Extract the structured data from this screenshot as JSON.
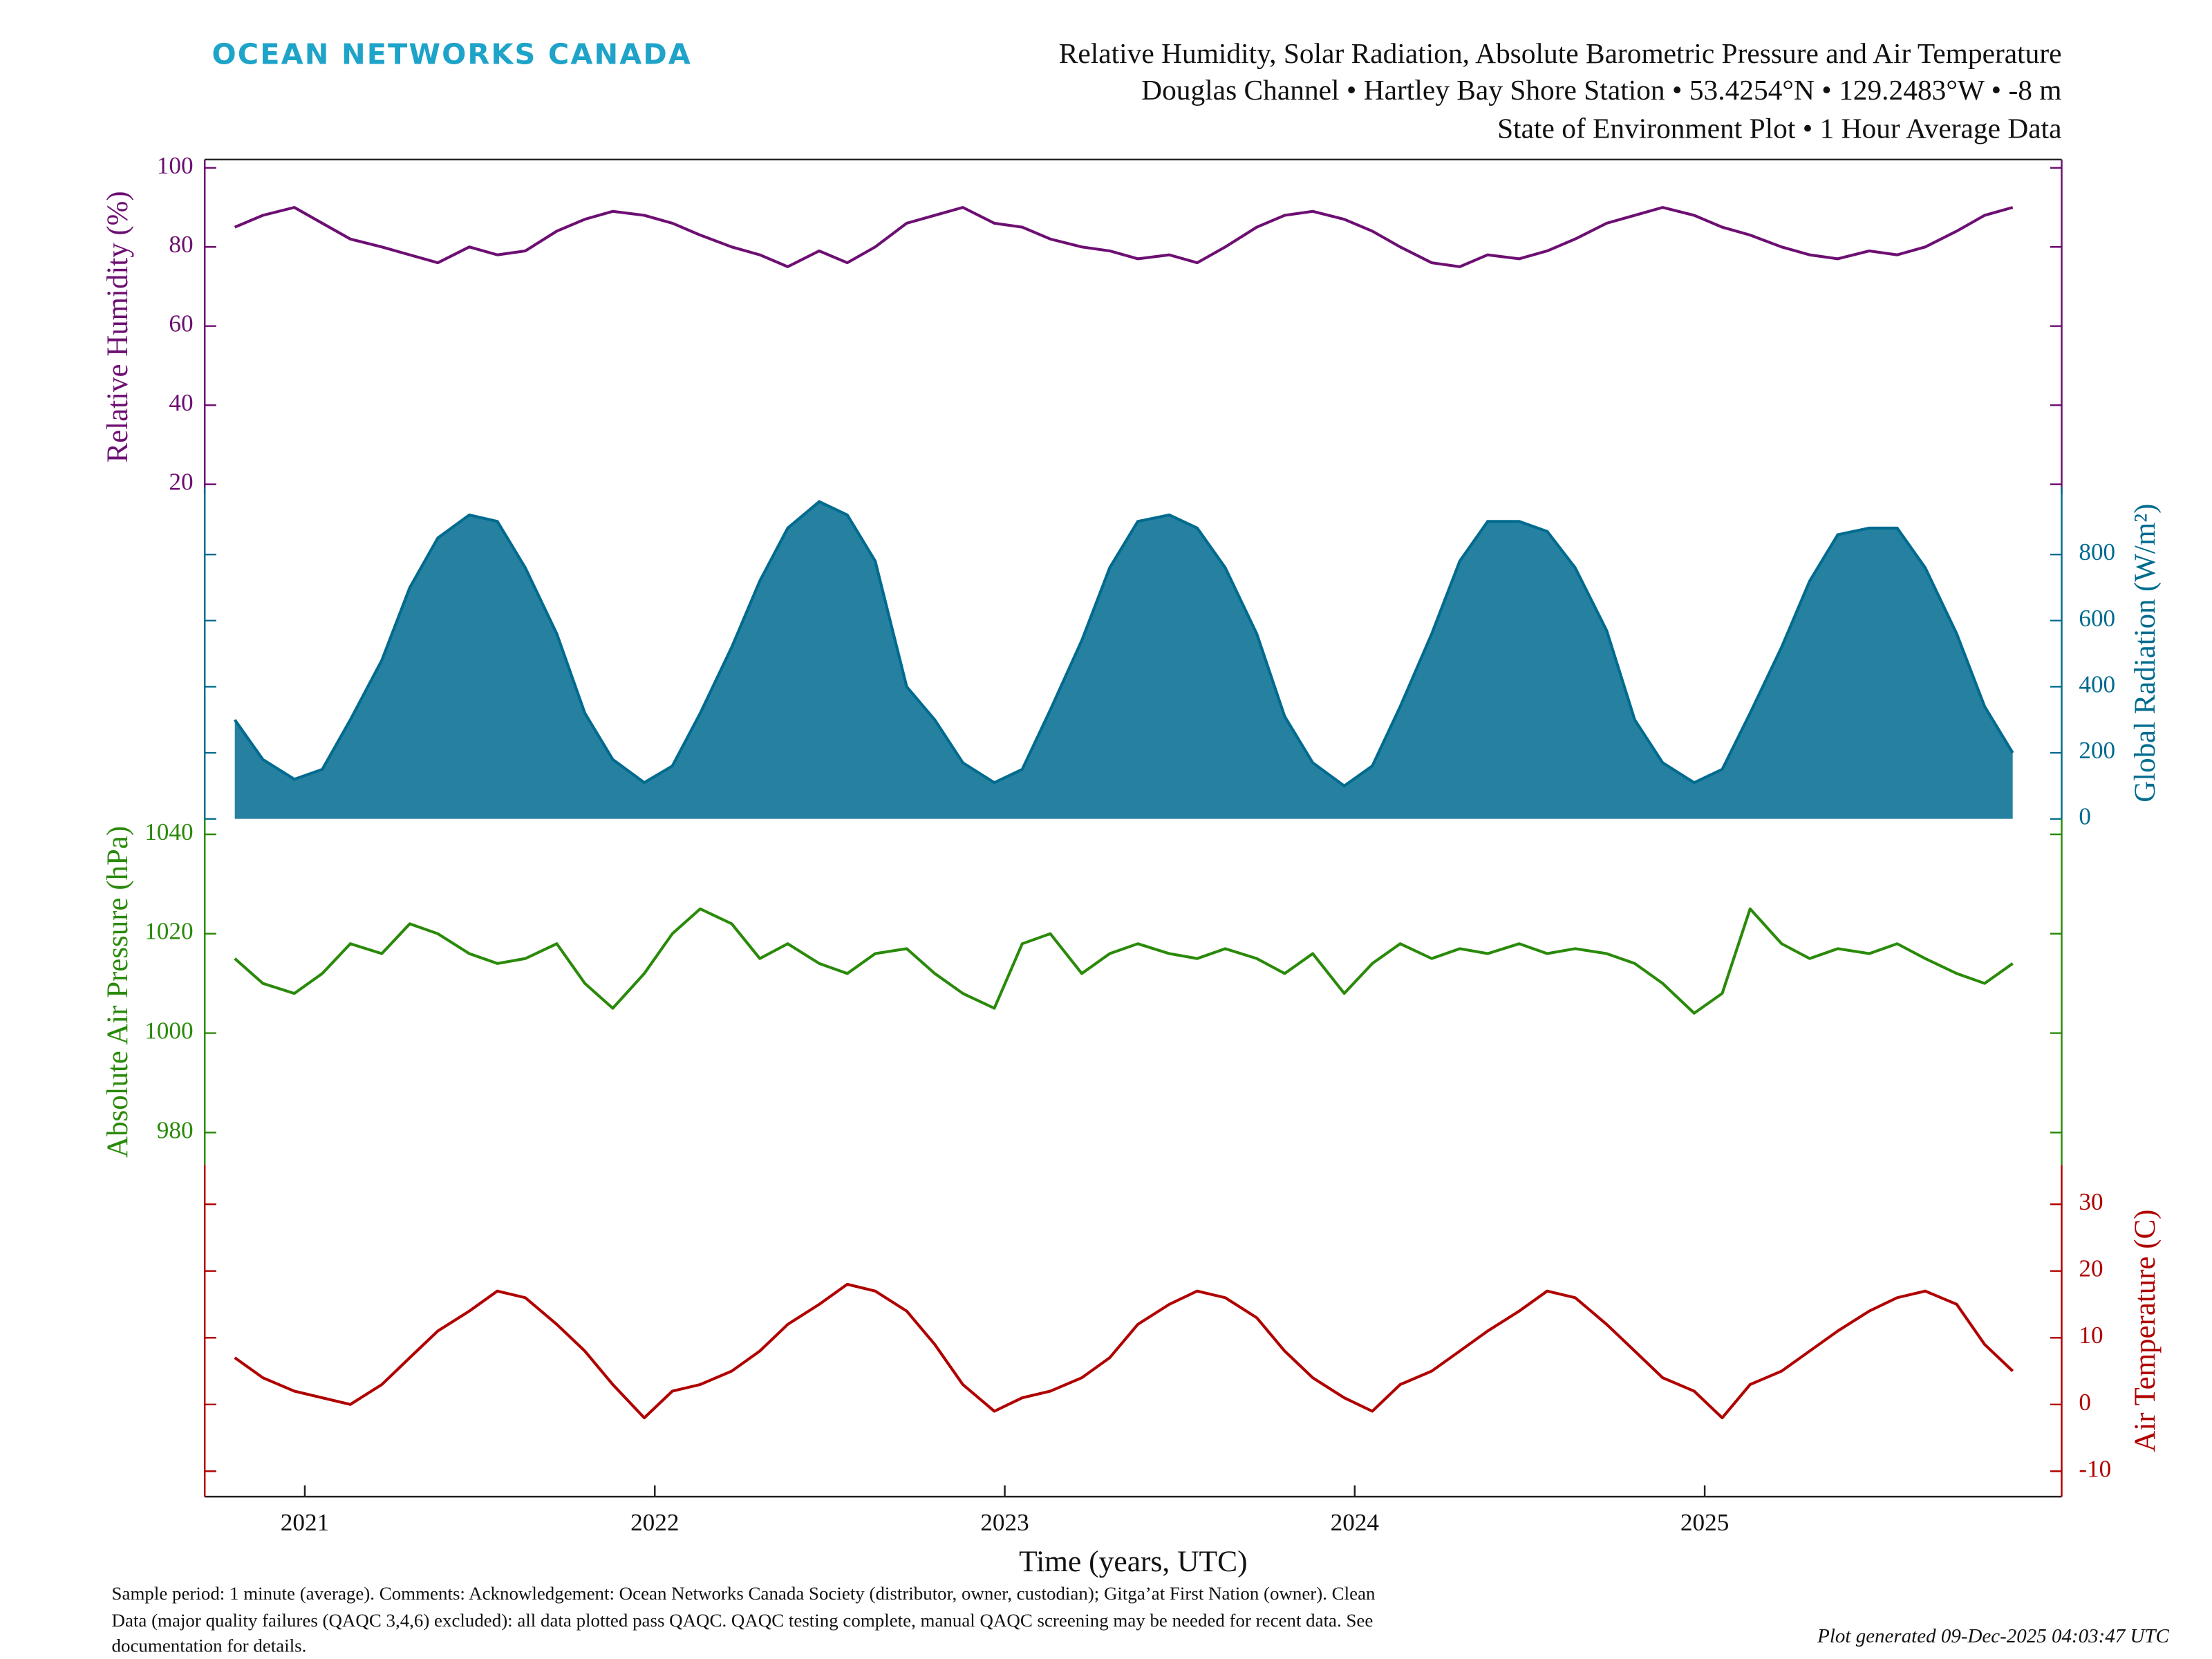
{
  "header": {
    "logo": "OCEAN NETWORKS CANADA",
    "title_lines": [
      "Relative Humidity, Solar Radiation, Absolute Barometric Pressure and Air Temperature",
      "Douglas Channel • Hartley Bay Shore Station • 53.4254°N • 129.2483°W • -8 m",
      "State of Environment Plot • 1 Hour Average Data"
    ]
  },
  "chart_data": [
    {
      "type": "line",
      "ylabel": "Relative Humidity (%)",
      "color": "#6d0f72",
      "axis_side": "left",
      "xlim": [
        2020.714,
        2026.02
      ],
      "ylim": [
        17.5,
        102.1
      ],
      "yticks": [
        20,
        40,
        60,
        80,
        100
      ],
      "x": [
        2020.8,
        2020.88,
        2020.97,
        2021.05,
        2021.13,
        2021.22,
        2021.3,
        2021.38,
        2021.47,
        2021.55,
        2021.63,
        2021.72,
        2021.8,
        2021.88,
        2021.97,
        2022.05,
        2022.13,
        2022.22,
        2022.3,
        2022.38,
        2022.47,
        2022.55,
        2022.63,
        2022.72,
        2022.8,
        2022.88,
        2022.97,
        2023.05,
        2023.13,
        2023.22,
        2023.3,
        2023.38,
        2023.47,
        2023.55,
        2023.63,
        2023.72,
        2023.8,
        2023.88,
        2023.97,
        2024.05,
        2024.13,
        2024.22,
        2024.3,
        2024.38,
        2024.47,
        2024.55,
        2024.63,
        2024.72,
        2024.8,
        2024.88,
        2024.97,
        2025.05,
        2025.13,
        2025.22,
        2025.3,
        2025.38,
        2025.47,
        2025.55,
        2025.63,
        2025.72,
        2025.8,
        2025.88
      ],
      "values": [
        85,
        88,
        90,
        86,
        82,
        80,
        78,
        76,
        80,
        78,
        79,
        84,
        87,
        89,
        88,
        86,
        83,
        80,
        78,
        75,
        79,
        76,
        80,
        86,
        88,
        90,
        86,
        85,
        82,
        80,
        79,
        77,
        78,
        76,
        80,
        85,
        88,
        89,
        87,
        84,
        80,
        76,
        75,
        78,
        77,
        79,
        82,
        86,
        88,
        90,
        88,
        85,
        83,
        80,
        78,
        77,
        79,
        78,
        80,
        84,
        88,
        90
      ]
    },
    {
      "type": "area",
      "ylabel": "Global Radiation (W/m²)",
      "color": "#006b8f",
      "axis_side": "right",
      "xlim": [
        2020.714,
        2026.02
      ],
      "ylim": [
        0,
        1004
      ],
      "yticks": [
        0,
        200,
        400,
        600,
        800
      ],
      "x": [
        2020.8,
        2020.88,
        2020.97,
        2021.05,
        2021.13,
        2021.22,
        2021.3,
        2021.38,
        2021.47,
        2021.55,
        2021.63,
        2021.72,
        2021.8,
        2021.88,
        2021.97,
        2022.05,
        2022.13,
        2022.22,
        2022.3,
        2022.38,
        2022.47,
        2022.55,
        2022.63,
        2022.72,
        2022.8,
        2022.88,
        2022.97,
        2023.05,
        2023.13,
        2023.22,
        2023.3,
        2023.38,
        2023.47,
        2023.55,
        2023.63,
        2023.72,
        2023.8,
        2023.88,
        2023.97,
        2024.05,
        2024.13,
        2024.22,
        2024.3,
        2024.38,
        2024.47,
        2024.55,
        2024.63,
        2024.72,
        2024.8,
        2024.88,
        2024.97,
        2025.05,
        2025.13,
        2025.22,
        2025.3,
        2025.38,
        2025.47,
        2025.55,
        2025.63,
        2025.72,
        2025.8,
        2025.88
      ],
      "values": [
        300,
        180,
        120,
        150,
        300,
        480,
        700,
        850,
        920,
        900,
        760,
        560,
        320,
        180,
        110,
        160,
        320,
        520,
        720,
        880,
        960,
        920,
        780,
        400,
        300,
        170,
        110,
        150,
        330,
        540,
        760,
        900,
        920,
        880,
        760,
        560,
        310,
        170,
        100,
        160,
        340,
        560,
        780,
        900,
        900,
        870,
        760,
        570,
        300,
        170,
        110,
        150,
        320,
        520,
        720,
        860,
        880,
        880,
        760,
        560,
        340,
        200
      ]
    },
    {
      "type": "line",
      "ylabel": "Absolute Air Pressure (hPa)",
      "color": "#2a8a0a",
      "axis_side": "left",
      "xlim": [
        2020.714,
        2026.02
      ],
      "ylim": [
        973.5,
        1043.1
      ],
      "yticks": [
        980,
        1000,
        1020,
        1040
      ],
      "x": [
        2020.8,
        2020.88,
        2020.97,
        2021.05,
        2021.13,
        2021.22,
        2021.3,
        2021.38,
        2021.47,
        2021.55,
        2021.63,
        2021.72,
        2021.8,
        2021.88,
        2021.97,
        2022.05,
        2022.13,
        2022.22,
        2022.3,
        2022.38,
        2022.47,
        2022.55,
        2022.63,
        2022.72,
        2022.8,
        2022.88,
        2022.97,
        2023.05,
        2023.13,
        2023.22,
        2023.3,
        2023.38,
        2023.47,
        2023.55,
        2023.63,
        2023.72,
        2023.8,
        2023.88,
        2023.97,
        2024.05,
        2024.13,
        2024.22,
        2024.3,
        2024.38,
        2024.47,
        2024.55,
        2024.63,
        2024.72,
        2024.8,
        2024.88,
        2024.97,
        2025.05,
        2025.13,
        2025.22,
        2025.3,
        2025.38,
        2025.47,
        2025.55,
        2025.63,
        2025.72,
        2025.8,
        2025.88
      ],
      "values": [
        1015,
        1010,
        1008,
        1012,
        1018,
        1016,
        1022,
        1020,
        1016,
        1014,
        1015,
        1018,
        1010,
        1005,
        1012,
        1020,
        1025,
        1022,
        1015,
        1018,
        1014,
        1012,
        1016,
        1017,
        1012,
        1008,
        1005,
        1018,
        1020,
        1012,
        1016,
        1018,
        1016,
        1015,
        1017,
        1015,
        1012,
        1016,
        1008,
        1014,
        1018,
        1015,
        1017,
        1016,
        1018,
        1016,
        1017,
        1016,
        1014,
        1010,
        1004,
        1008,
        1025,
        1018,
        1015,
        1017,
        1016,
        1018,
        1015,
        1012,
        1010,
        1014
      ]
    },
    {
      "type": "line",
      "ylabel": "Air Temperature (C)",
      "color": "#b00000",
      "axis_side": "right",
      "xlim": [
        2020.714,
        2026.02
      ],
      "ylim": [
        -13.8,
        35.9
      ],
      "yticks": [
        -10,
        0,
        10,
        20,
        30
      ],
      "xticks": [
        2021,
        2022,
        2023,
        2024,
        2025
      ],
      "xlabel": "Time (years, UTC)",
      "x": [
        2020.8,
        2020.88,
        2020.97,
        2021.05,
        2021.13,
        2021.22,
        2021.3,
        2021.38,
        2021.47,
        2021.55,
        2021.63,
        2021.72,
        2021.8,
        2021.88,
        2021.97,
        2022.05,
        2022.13,
        2022.22,
        2022.3,
        2022.38,
        2022.47,
        2022.55,
        2022.63,
        2022.72,
        2022.8,
        2022.88,
        2022.97,
        2023.05,
        2023.13,
        2023.22,
        2023.3,
        2023.38,
        2023.47,
        2023.55,
        2023.63,
        2023.72,
        2023.8,
        2023.88,
        2023.97,
        2024.05,
        2024.13,
        2024.22,
        2024.3,
        2024.38,
        2024.47,
        2024.55,
        2024.63,
        2024.72,
        2024.8,
        2024.88,
        2024.97,
        2025.05,
        2025.13,
        2025.22,
        2025.3,
        2025.38,
        2025.47,
        2025.55,
        2025.63,
        2025.72,
        2025.8,
        2025.88
      ],
      "values": [
        7,
        4,
        2,
        1,
        0,
        3,
        7,
        11,
        14,
        17,
        16,
        12,
        8,
        3,
        -2,
        2,
        3,
        5,
        8,
        12,
        15,
        18,
        17,
        14,
        9,
        3,
        -1,
        1,
        2,
        4,
        7,
        12,
        15,
        17,
        16,
        13,
        8,
        4,
        1,
        -1,
        3,
        5,
        8,
        11,
        14,
        17,
        16,
        12,
        8,
        4,
        2,
        -2,
        3,
        5,
        8,
        11,
        14,
        16,
        17,
        15,
        9,
        5
      ]
    }
  ],
  "footer": {
    "lines": [
      "Sample period: 1 minute (average). Comments: Acknowledgement: Ocean Networks Canada Society (distributor, owner, custodian); Gitga’at First Nation (owner). Clean",
      "Data (major quality failures (QAQC 3,4,6) excluded): all data plotted pass QAQC. QAQC testing complete, manual QAQC screening may be needed for recent data. See",
      "documentation for details."
    ],
    "generated": "Plot generated 09-Dec-2025 04:03:47 UTC"
  }
}
